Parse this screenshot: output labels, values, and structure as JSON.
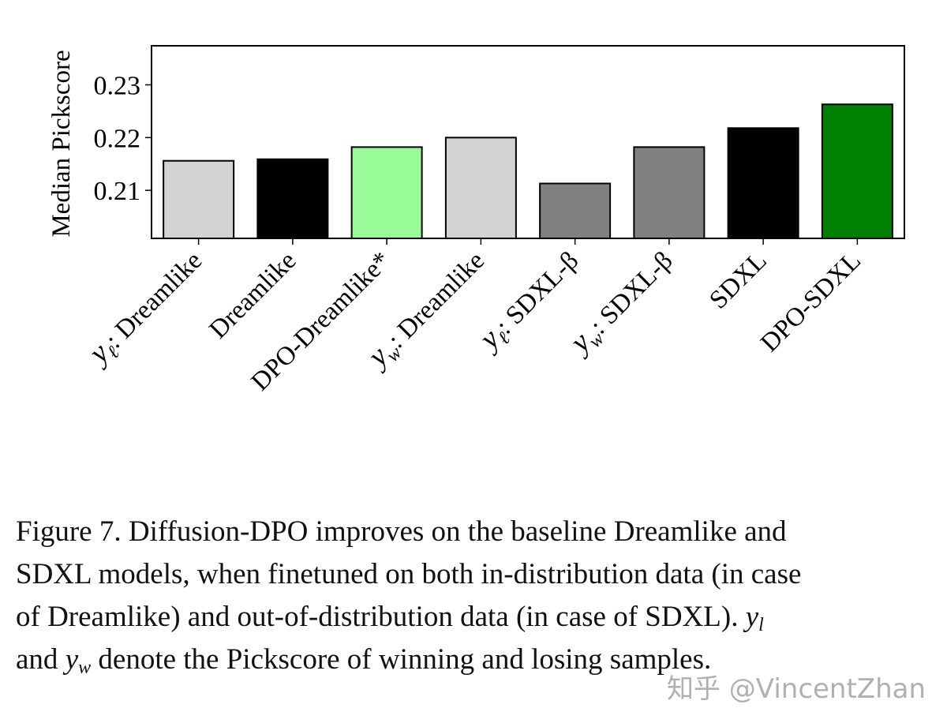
{
  "chart_data": {
    "type": "bar",
    "ylabel": "Median Pickscore",
    "xlabel": "",
    "ylim": [
      0.2009,
      0.2374
    ],
    "yticks": [
      0.21,
      0.22,
      0.23
    ],
    "ytick_labels": [
      "0.21",
      "0.22",
      "0.23"
    ],
    "grid": false,
    "categories": [
      {
        "math": "y",
        "sub": "ℓ",
        "text": ": Dreamlike"
      },
      {
        "math": "",
        "sub": "",
        "text": "Dreamlike"
      },
      {
        "math": "",
        "sub": "",
        "text": "DPO-Dreamlike*"
      },
      {
        "math": "y",
        "sub": "w",
        "text": ": Dreamlike"
      },
      {
        "math": "y",
        "sub": "ℓ",
        "text": ": SDXL-β"
      },
      {
        "math": "y",
        "sub": "w",
        "text": ": SDXL-β"
      },
      {
        "math": "",
        "sub": "",
        "text": "SDXL"
      },
      {
        "math": "",
        "sub": "",
        "text": "DPO-SDXL"
      }
    ],
    "values": [
      0.2156,
      0.2159,
      0.2182,
      0.22,
      0.2113,
      0.2182,
      0.2218,
      0.2263
    ],
    "colors": [
      "#d3d3d3",
      "#000000",
      "#98fb98",
      "#d3d3d3",
      "#808080",
      "#808080",
      "#000000",
      "#008000"
    ]
  },
  "caption": {
    "line1": "Figure 7. Diffusion-DPO improves on the baseline Dreamlike and",
    "line2": "SDXL models, when finetuned on both in-distribution data (in case",
    "line3_text": "of Dreamlike) and out-of-distribution data (in case of SDXL).",
    "line3_math": "y",
    "line3_sub": "l",
    "line4_pre": "and",
    "line4_math": "y",
    "line4_sub": "w",
    "line4_text": "denote the Pickscore of winning and losing samples."
  },
  "watermark": "知乎 @VincentZhan"
}
